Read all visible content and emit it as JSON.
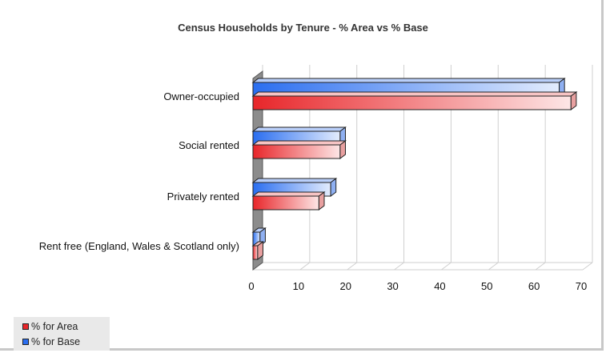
{
  "chart_data": {
    "type": "bar",
    "orientation": "horizontal",
    "title": "Census Households by Tenure - % Area vs % Base",
    "xlabel": "",
    "ylabel": "",
    "categories": [
      "Owner-occupied",
      "Social rented",
      "Privately rented",
      "Rent free (England, Wales & Scotland only)"
    ],
    "series": [
      {
        "name": "% for Area",
        "values": [
          67.5,
          18.5,
          14,
          1
        ],
        "color": "#e8262a"
      },
      {
        "name": "% for Base",
        "values": [
          65,
          18.5,
          16.5,
          1.5
        ],
        "color": "#2a6ef0"
      }
    ],
    "xlim": [
      0,
      70
    ],
    "ticks": [
      "0",
      "10",
      "20",
      "30",
      "40",
      "50",
      "60",
      "70"
    ],
    "grid": true,
    "legend_position": "bottom-left"
  }
}
